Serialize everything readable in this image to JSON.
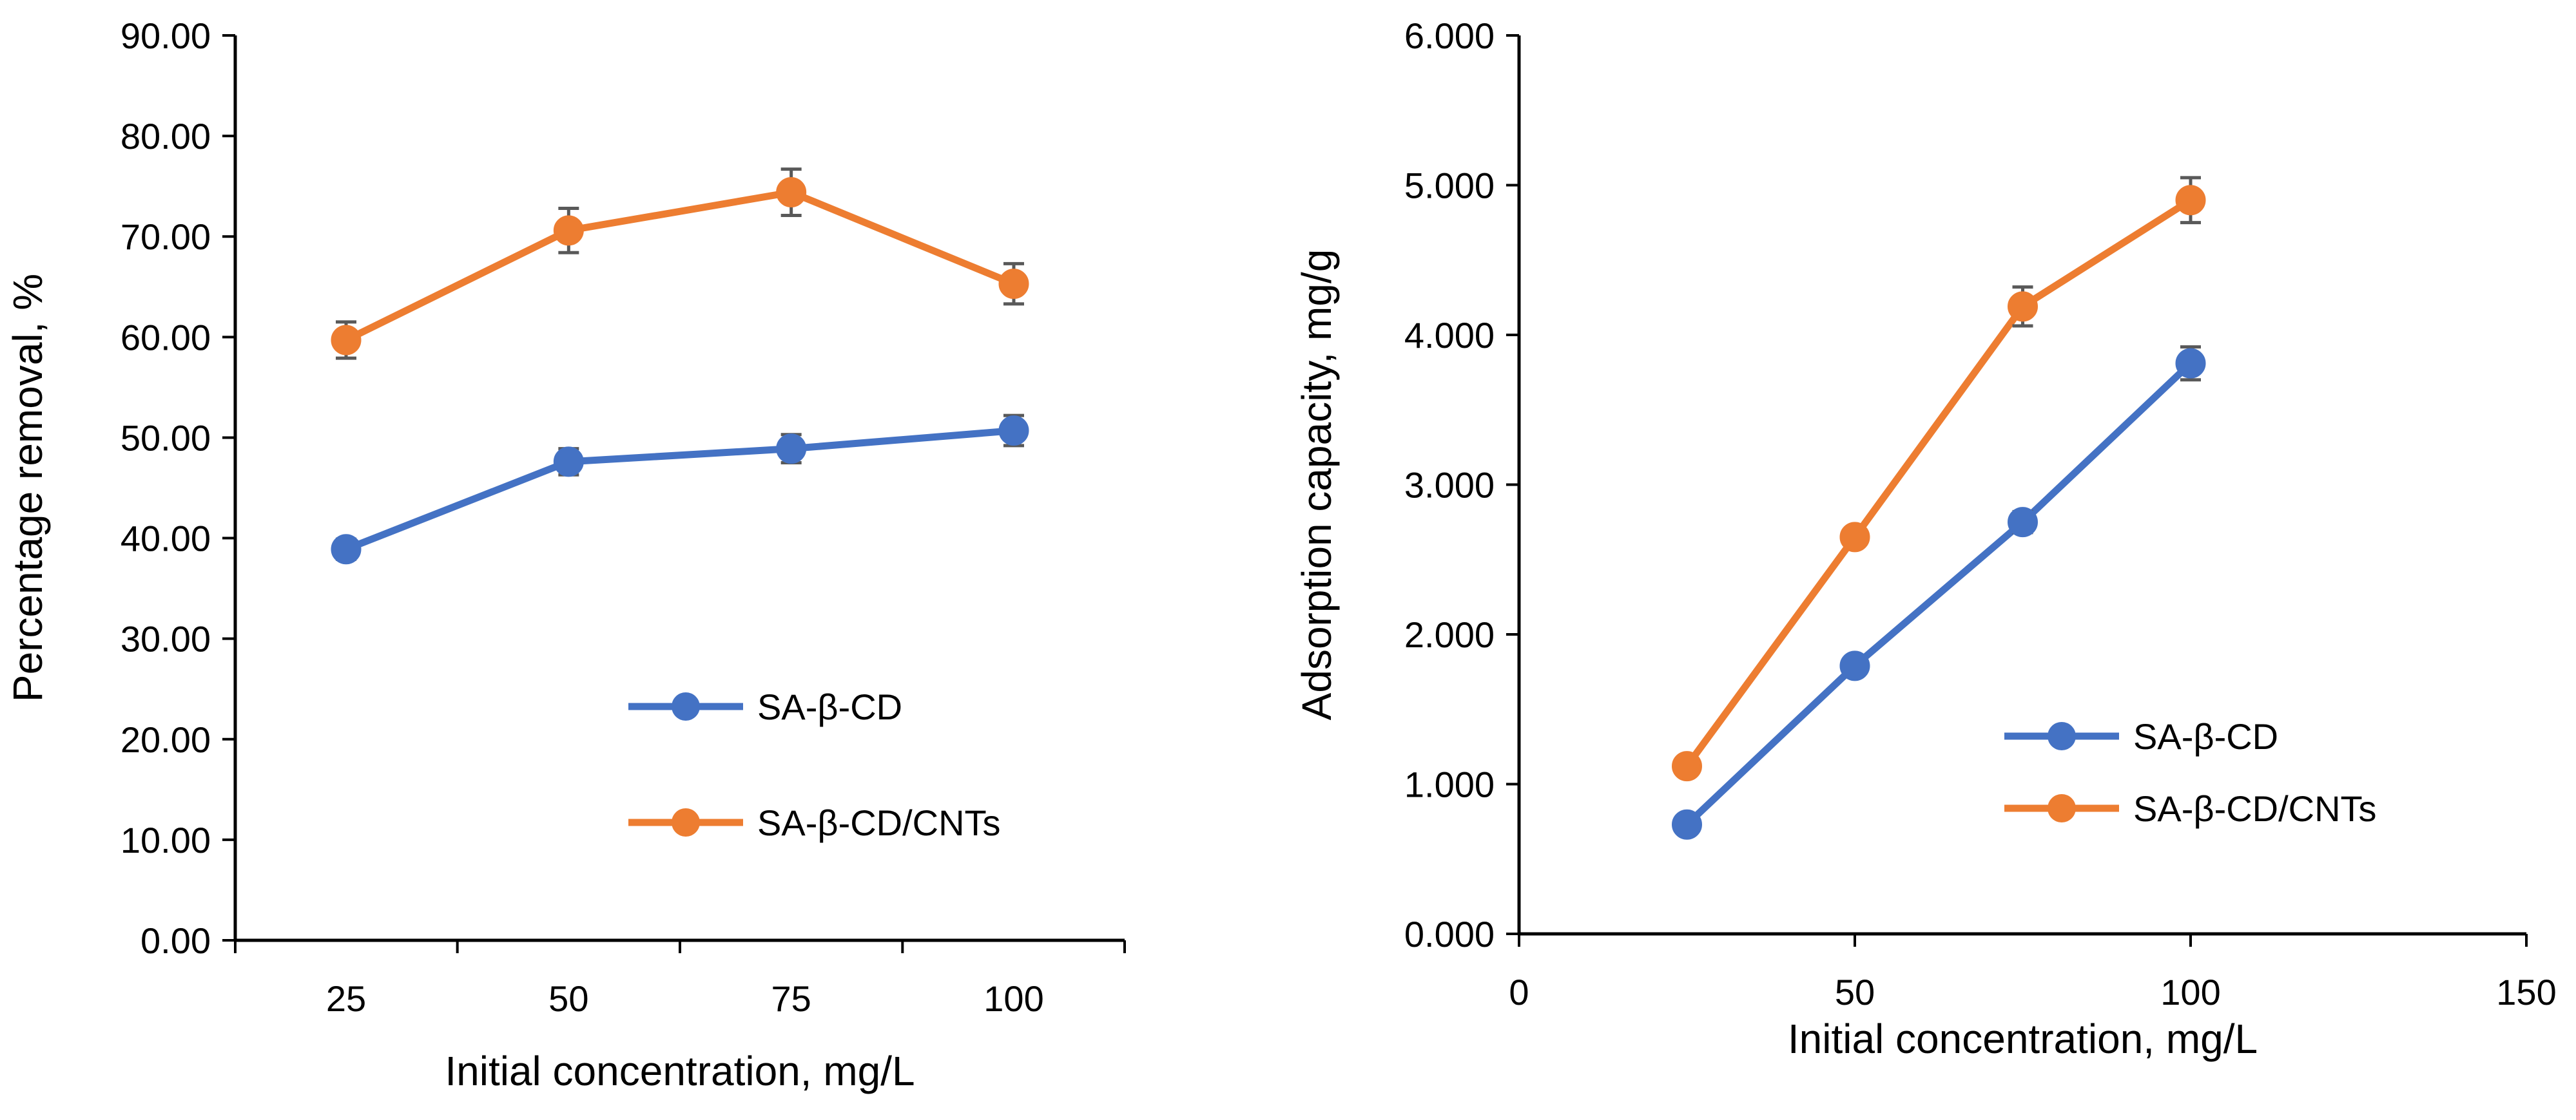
{
  "chart_data": [
    {
      "id": "left",
      "type": "line",
      "title": "",
      "xlabel": "Initial concentration, mg/L",
      "ylabel": "Percentage removal, %",
      "x_axis_type": "category",
      "categories": [
        "25",
        "50",
        "75",
        "100"
      ],
      "ylim": [
        0,
        90
      ],
      "y_ticks": [
        "0.00",
        "10.00",
        "20.00",
        "30.00",
        "40.00",
        "50.00",
        "60.00",
        "70.00",
        "80.00",
        "90.00"
      ],
      "grid": false,
      "legend_position": "lower-right",
      "series": [
        {
          "name": "SA-β-CD",
          "color": "#4472C4",
          "values": [
            38.9,
            47.6,
            48.9,
            50.7
          ],
          "errors": [
            1.0,
            1.3,
            1.4,
            1.5
          ]
        },
        {
          "name": "SA-β-CD/CNTs",
          "color": "#ED7D31",
          "values": [
            59.7,
            70.6,
            74.4,
            65.3
          ],
          "errors": [
            1.8,
            2.2,
            2.3,
            2.0
          ]
        }
      ]
    },
    {
      "id": "right",
      "type": "line",
      "title": "",
      "xlabel": "Initial concentration, mg/L",
      "ylabel": "Adsorption capacity, mg/g",
      "x_axis_type": "numeric",
      "xlim": [
        0,
        150
      ],
      "x_ticks": [
        "0",
        "50",
        "100",
        "150"
      ],
      "ylim": [
        0,
        6
      ],
      "y_ticks": [
        "0.000",
        "1.000",
        "2.000",
        "3.000",
        "4.000",
        "5.000",
        "6.000"
      ],
      "grid": false,
      "legend_position": "lower-right",
      "series": [
        {
          "name": "SA-β-CD",
          "color": "#4472C4",
          "x": [
            25,
            50,
            75,
            100
          ],
          "values": [
            0.73,
            1.79,
            2.75,
            3.81
          ],
          "errors": [
            0.0,
            0.05,
            0.07,
            0.11
          ]
        },
        {
          "name": "SA-β-CD/CNTs",
          "color": "#ED7D31",
          "x": [
            25,
            50,
            75,
            100
          ],
          "values": [
            1.12,
            2.65,
            4.19,
            4.9
          ],
          "errors": [
            0.0,
            0.06,
            0.13,
            0.15
          ]
        }
      ]
    }
  ]
}
